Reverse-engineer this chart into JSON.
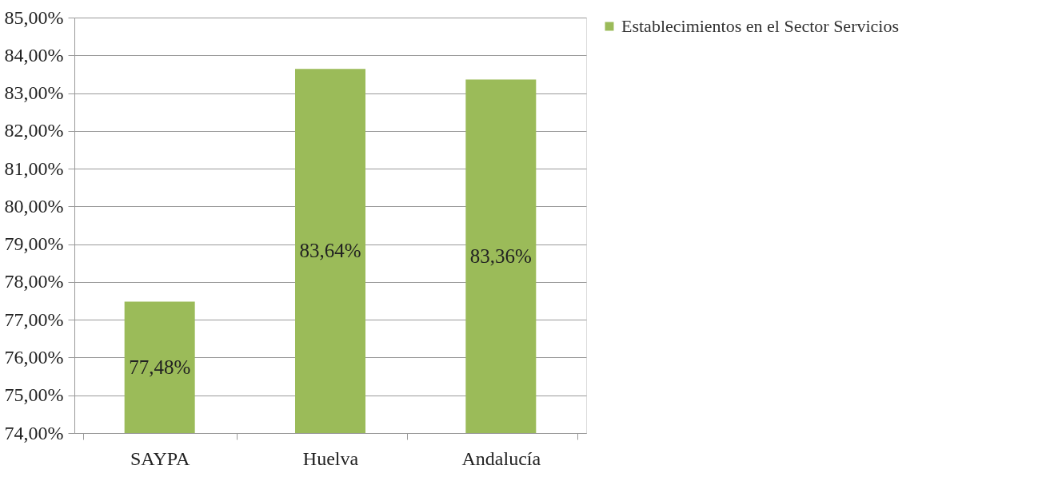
{
  "chart_data": {
    "type": "bar",
    "categories": [
      "SAYPA",
      "Huelva",
      "Andalucía"
    ],
    "series": [
      {
        "name": "Establecimientos en el Sector Servicios",
        "color": "#9bbb59",
        "values": [
          77.48,
          83.64,
          83.36
        ],
        "value_labels": [
          "77,48%",
          "83,64%",
          "83,36%"
        ]
      }
    ],
    "ylim": [
      74,
      85
    ],
    "yticks": [
      {
        "value": 74,
        "label": "74,00%"
      },
      {
        "value": 75,
        "label": "75,00%"
      },
      {
        "value": 76,
        "label": "76,00%"
      },
      {
        "value": 77,
        "label": "77,00%"
      },
      {
        "value": 78,
        "label": "78,00%"
      },
      {
        "value": 79,
        "label": "79,00%"
      },
      {
        "value": 80,
        "label": "80,00%"
      },
      {
        "value": 81,
        "label": "81,00%"
      },
      {
        "value": 82,
        "label": "82,00%"
      },
      {
        "value": 83,
        "label": "83,00%"
      },
      {
        "value": 84,
        "label": "84,00%"
      },
      {
        "value": 85,
        "label": "85,00%"
      }
    ],
    "grid": "y",
    "legend": "right"
  }
}
